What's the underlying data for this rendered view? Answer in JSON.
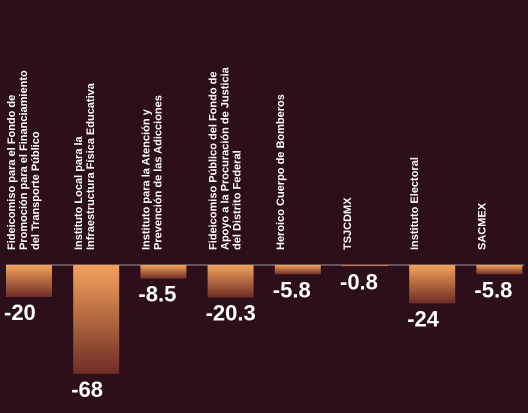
{
  "chart_data": {
    "type": "bar",
    "categories": [
      [
        "Fideicomiso para el Fondo de",
        "Promoción para el Financiamiento",
        "del Transporte Público"
      ],
      [
        "Instituto Local para la",
        "Infraestructura Física Educativa"
      ],
      [
        "Instituto para la Atención y",
        "Prevención de las Adicciones"
      ],
      [
        "Fideicomiso Público del Fondo de",
        "Apoyo a la Procuración de Justicia",
        "del Distrito Federal"
      ],
      [
        "Heroico Cuerpo de Bomberos"
      ],
      [
        "TSJCDMX"
      ],
      [
        "Instituto Electoral"
      ],
      [
        "SACMEX"
      ]
    ],
    "values": [
      -20,
      -68,
      -8.5,
      -20.3,
      -5.8,
      -0.8,
      -24,
      -5.8
    ],
    "value_labels": [
      "-20",
      "-68",
      "-8.5",
      "-20.3",
      "-5.8",
      "-0.8",
      "-24",
      "-5.8"
    ],
    "ylim": [
      -68,
      0
    ],
    "grid": false,
    "legend": "none",
    "colors": {
      "background": "#2d0e1b",
      "bar_top": "#f4a25a",
      "bar_bottom": "#6e2d26",
      "baseline": "#7a6a70",
      "text": "#ffffff"
    }
  }
}
